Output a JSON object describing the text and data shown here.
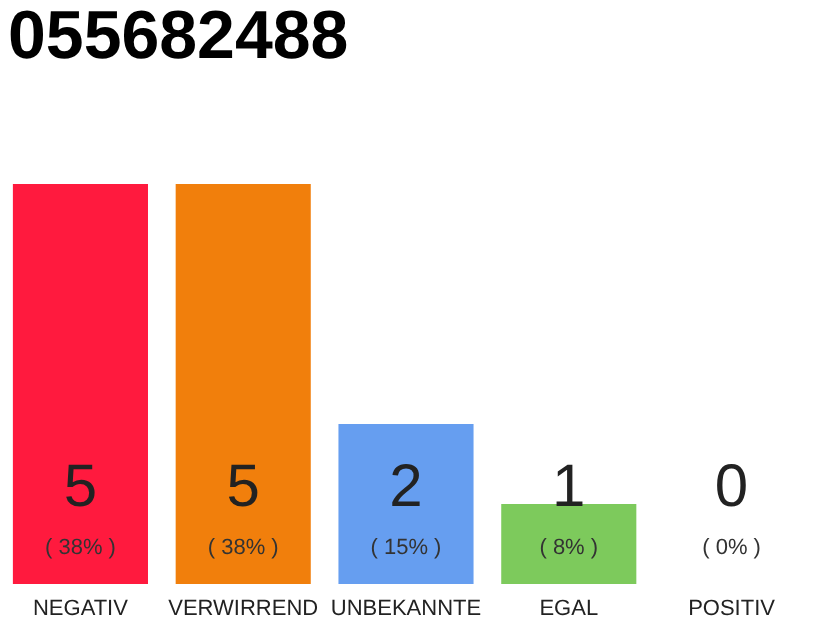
{
  "chart_data": {
    "type": "bar",
    "title": "055682488",
    "categories": [
      "NEGATIV",
      "VERWIRREND",
      "UNBEKANNTE",
      "EGAL",
      "POSITIV"
    ],
    "values": [
      5,
      5,
      2,
      1,
      0
    ],
    "colors": [
      "#ff1a3e",
      "#f17f0c",
      "#669ef0",
      "#7dca5c",
      "#2aa84a"
    ],
    "value_labels": [
      "5",
      "5",
      "2",
      "1",
      "0"
    ],
    "annotations": [
      "( 38% )",
      "( 38% )",
      "( 15% )",
      "( 8% )",
      "( 0% )"
    ],
    "grid": false
  }
}
